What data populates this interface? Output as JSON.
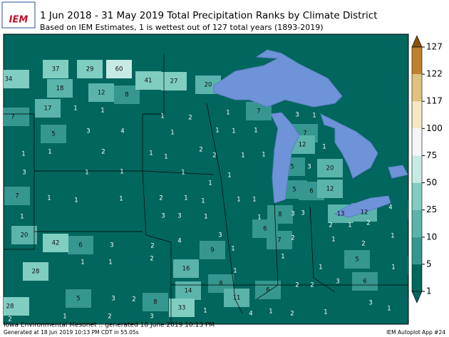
{
  "header": {
    "logo": "IEM",
    "title": "1 Jun 2018 - 31 May 2019 Total Precipitation Ranks by Climate District",
    "subtitle": "Based on IEM Estimates, 1 is wettest out of 127 total years (1893-2019)"
  },
  "map": {
    "ranks": [
      34,
      37,
      29,
      60,
      41,
      27,
      20,
      18,
      12,
      8,
      17,
      1,
      1,
      7,
      1,
      2,
      1,
      7,
      3,
      1,
      5,
      3,
      4,
      1,
      1,
      1,
      1,
      7,
      12,
      1,
      1,
      1,
      2,
      1,
      1,
      2,
      2,
      1,
      1,
      3,
      1,
      1,
      1,
      1,
      5,
      3,
      20,
      1,
      7,
      1,
      1,
      1,
      2,
      1,
      1,
      1,
      1,
      5,
      6,
      12,
      4,
      2,
      8,
      3,
      3,
      13,
      12,
      1,
      3,
      3,
      1,
      1,
      2,
      1,
      2,
      20,
      42,
      6,
      3,
      2,
      4,
      3,
      6,
      7,
      2,
      1,
      2,
      1,
      1,
      1,
      2,
      9,
      1,
      1,
      5,
      28,
      16,
      1,
      1,
      2,
      2,
      3,
      6,
      1,
      1,
      14,
      8,
      6,
      11,
      5,
      3,
      2,
      8,
      33,
      1,
      4,
      1,
      2,
      1,
      3,
      1,
      28,
      2,
      1,
      2,
      3
    ]
  },
  "colorbar": {
    "ticks": [
      1,
      5,
      10,
      25,
      50,
      75,
      100,
      117,
      122,
      127
    ],
    "colors": [
      "#01665e",
      "#35978f",
      "#5ab4ac",
      "#80cdc1",
      "#c7eae5",
      "#f5f5f5",
      "#f6e8c3",
      "#dfc27d",
      "#bf812d"
    ],
    "over_color": "#8c510a",
    "under_color": "#01665e"
  },
  "footer": {
    "source": "Iowa Environmental Mesonet :: generated 18 June 2019 10:13 PM",
    "generated": "Generated at 18 Jun 2019 10:13 PM CDT in 55.05s",
    "app": "IEM Autoplot App #24"
  }
}
